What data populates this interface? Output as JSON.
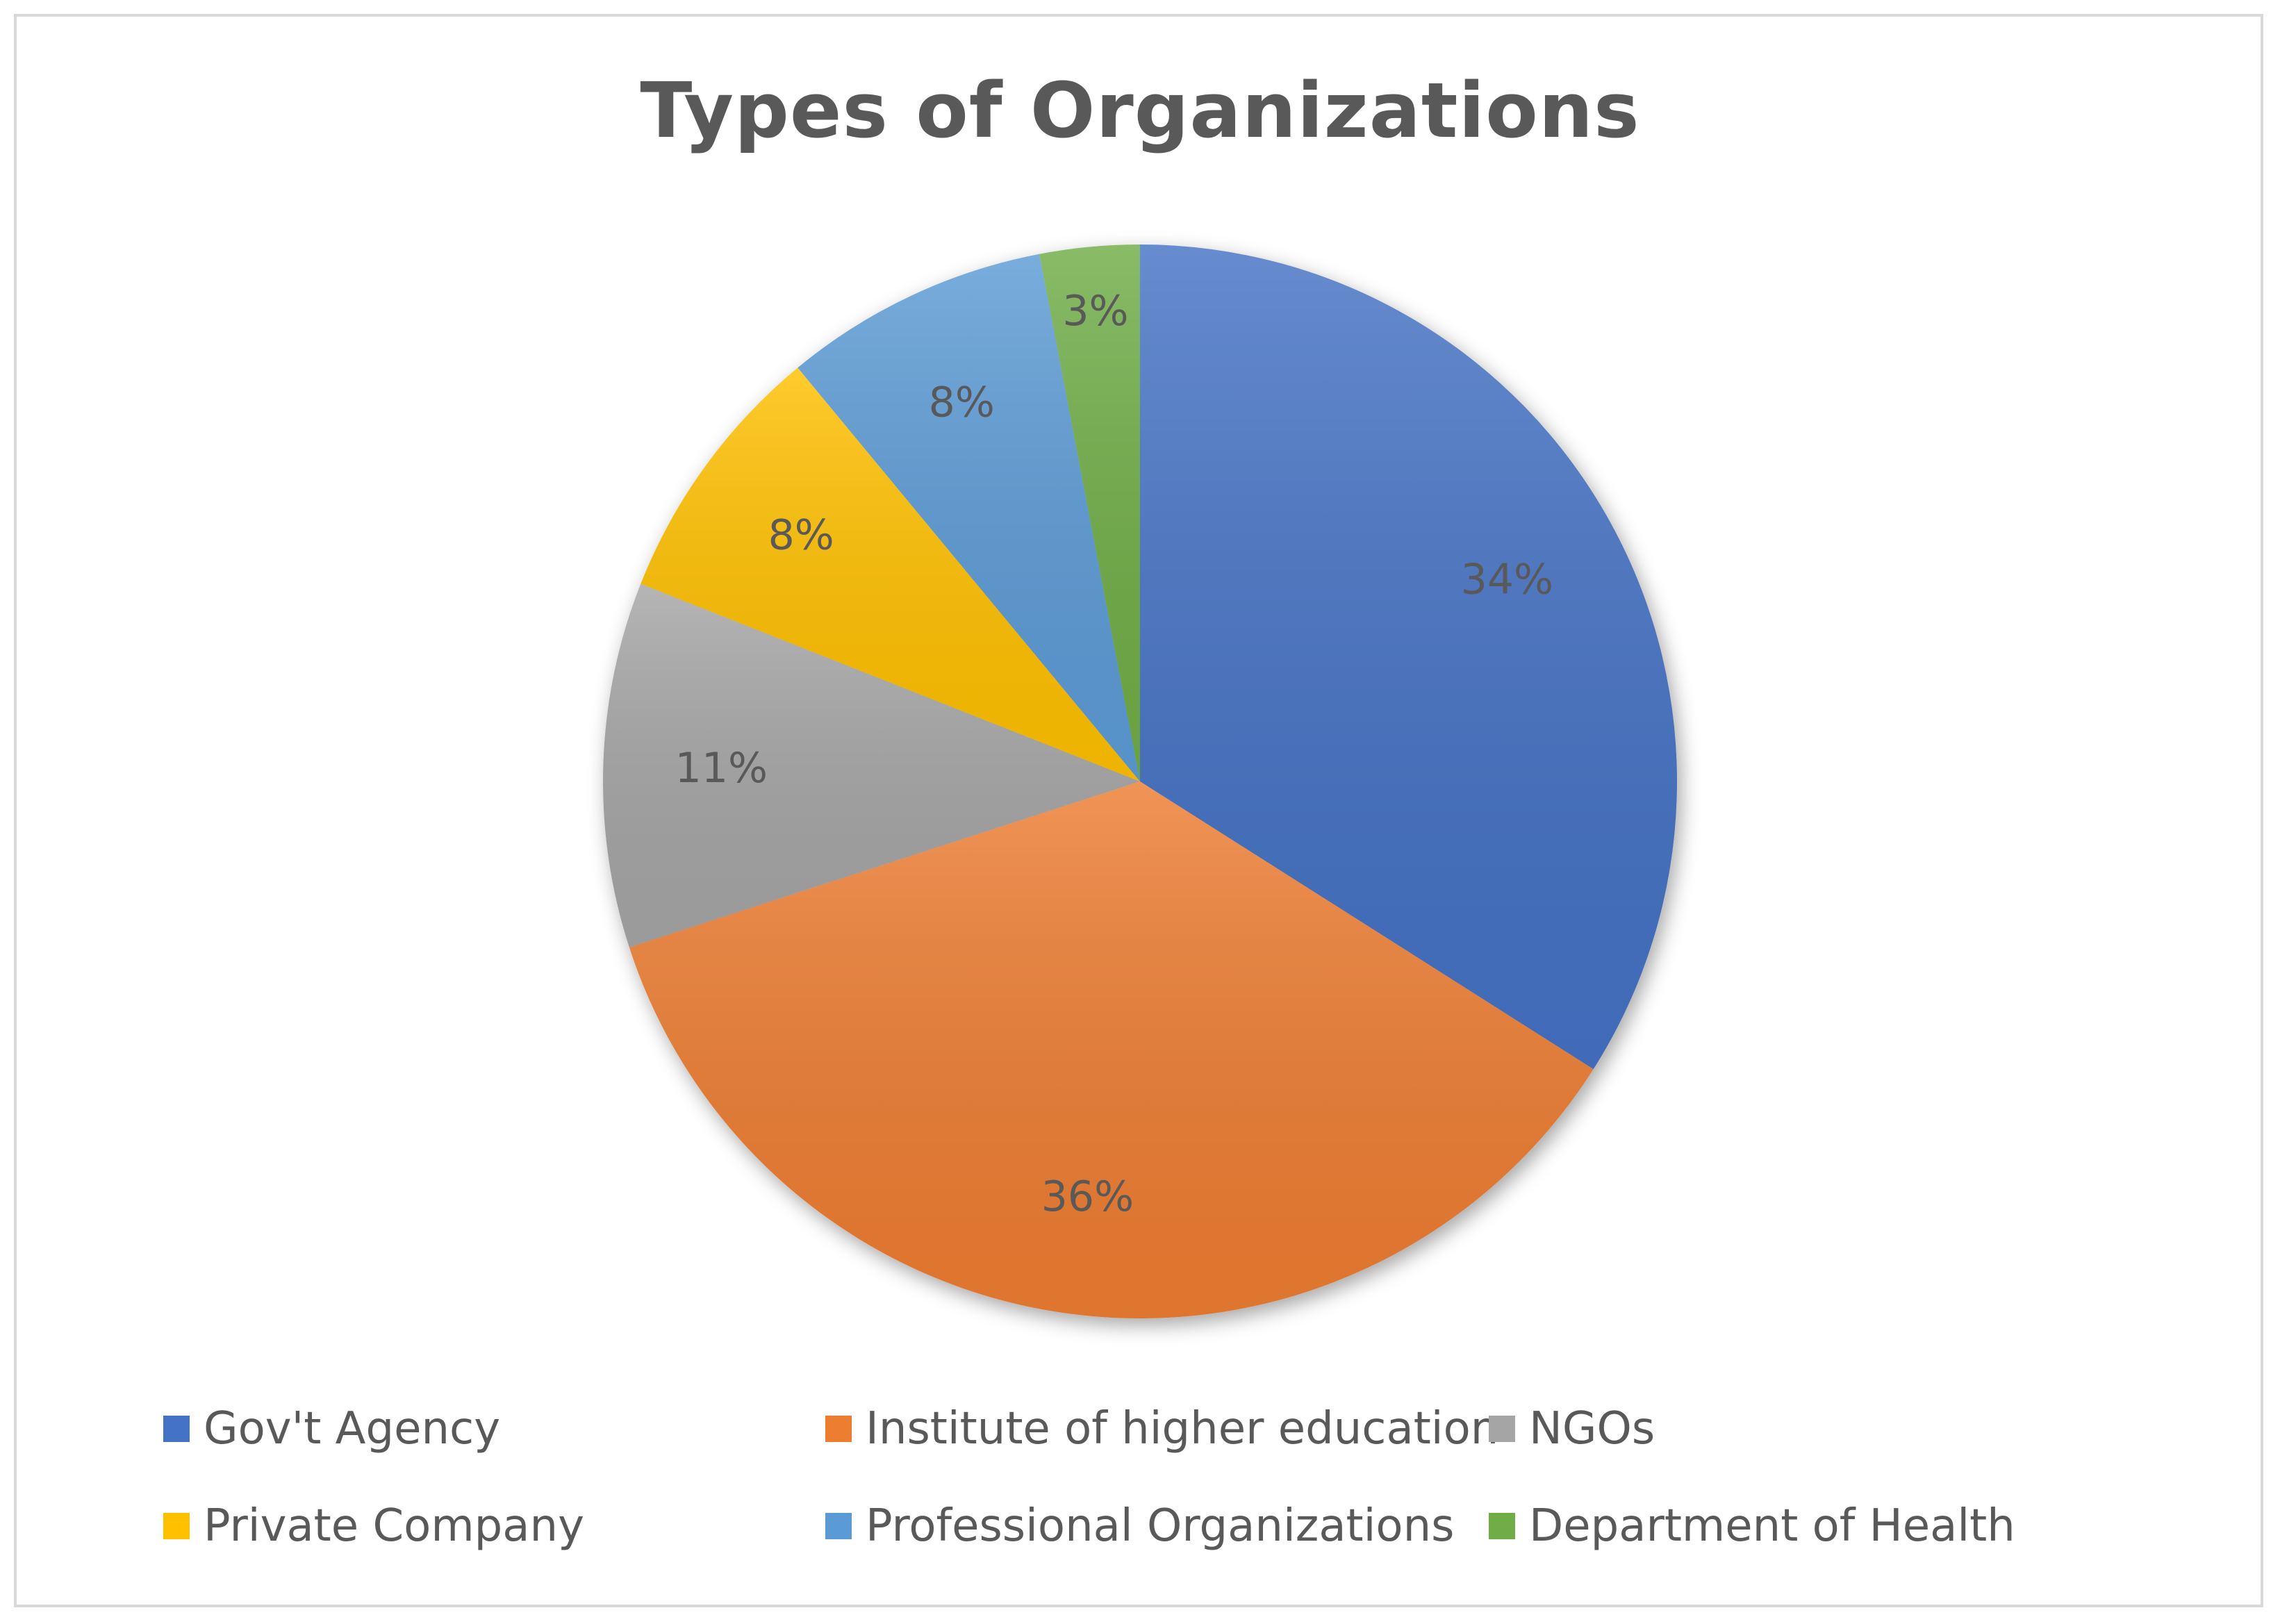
{
  "chart_data": {
    "type": "pie",
    "title": "Types of Organizations",
    "categories": [
      "Gov't Agency",
      "Institute of higher education",
      "NGOs",
      "Private Company",
      "Professional Organizations",
      "Department of Health"
    ],
    "values": [
      34,
      36,
      11,
      8,
      8,
      3
    ],
    "data_labels": [
      "34%",
      "36%",
      "11%",
      "8%",
      "8%",
      "3%"
    ],
    "colors": [
      "#4472c4",
      "#ed7d31",
      "#a5a5a5",
      "#ffc000",
      "#5b9bd5",
      "#70ad47"
    ],
    "start_angle_deg": 0,
    "direction": "clockwise",
    "legend_position": "bottom"
  }
}
